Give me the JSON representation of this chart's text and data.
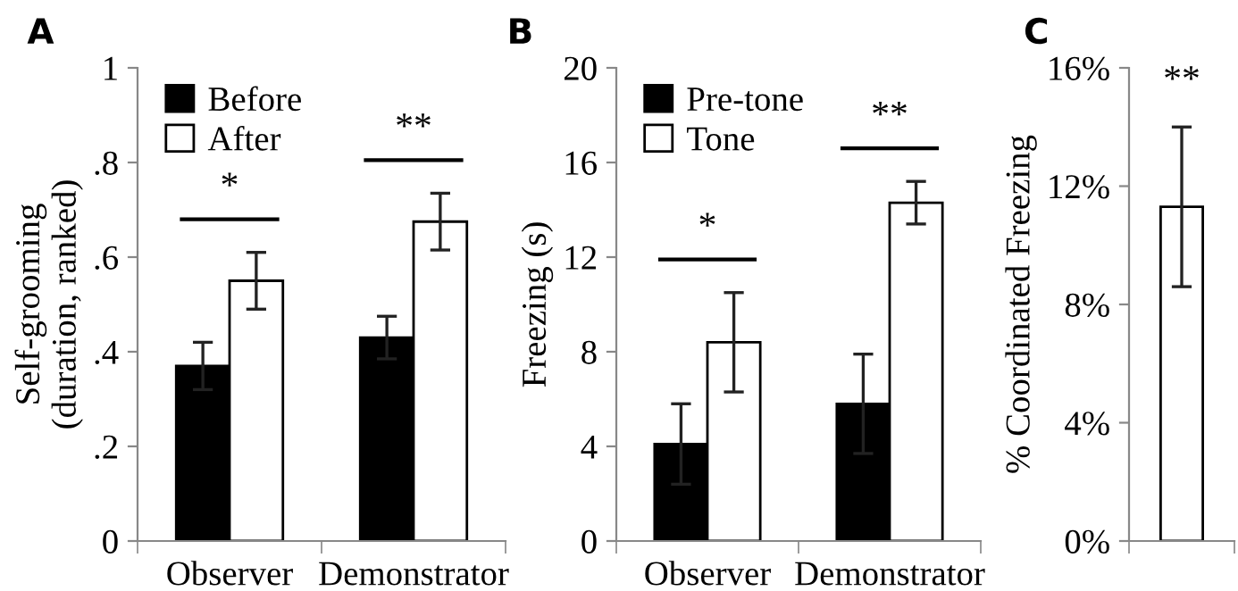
{
  "chart_data": [
    {
      "type": "bar",
      "title": "A",
      "ylabel": "Self-grooming\n(duration, ranked)",
      "categories": [
        "Observer",
        "Demonstrator"
      ],
      "series": [
        {
          "name": "Before",
          "color": "#000000",
          "values": [
            0.37,
            0.43
          ],
          "errors": [
            0.05,
            0.045
          ]
        },
        {
          "name": "After",
          "color": "#ffffff",
          "values": [
            0.55,
            0.675
          ],
          "errors": [
            0.06,
            0.06
          ]
        }
      ],
      "ylim": [
        0,
        1
      ],
      "yticks": [
        0,
        {
          "value": 0.2,
          "label": ".2"
        },
        {
          "value": 0.4,
          "label": ".4"
        },
        {
          "value": 0.6,
          "label": ".6"
        },
        {
          "value": 0.8,
          "label": ".8"
        },
        1
      ],
      "legend": "top left",
      "grid": false,
      "annotations": [
        "*",
        "**"
      ]
    },
    {
      "type": "bar",
      "title": "B",
      "ylabel": "Freezing (s)",
      "categories": [
        "Observer",
        "Demonstrator"
      ],
      "series": [
        {
          "name": "Pre-tone",
          "color": "#000000",
          "values": [
            4.1,
            5.8
          ],
          "errors": [
            1.7,
            2.1
          ]
        },
        {
          "name": "Tone",
          "color": "#ffffff",
          "values": [
            8.4,
            14.3
          ],
          "errors": [
            2.1,
            0.9
          ]
        }
      ],
      "ylim": [
        0,
        20
      ],
      "yticks": [
        0,
        4,
        8,
        12,
        16,
        20
      ],
      "legend": "top left",
      "grid": false,
      "annotations": [
        "*",
        "**"
      ]
    },
    {
      "type": "bar",
      "title": "C",
      "ylabel": "% Coordinated Freezing",
      "categories": [
        null
      ],
      "series": [
        {
          "color": "#ffffff",
          "values": [
            11.3
          ],
          "errors": [
            2.7
          ]
        }
      ],
      "ylim": [
        0,
        16
      ],
      "yticks": [
        {
          "value": 0,
          "label": "0%"
        },
        {
          "value": 4,
          "label": "4%"
        },
        {
          "value": 8,
          "label": "8%"
        },
        {
          "value": 12,
          "label": "12%"
        },
        {
          "value": 16,
          "label": "16%"
        }
      ],
      "legend": false,
      "grid": false,
      "annotations": [
        "**"
      ]
    }
  ]
}
